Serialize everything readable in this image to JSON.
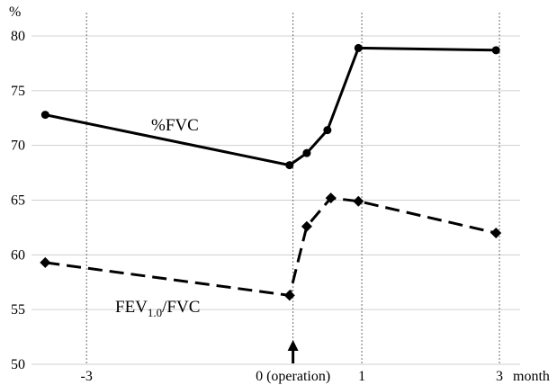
{
  "chart_data": {
    "type": "line",
    "ylabel": "%",
    "xlabel": "month",
    "ylim": [
      50,
      80
    ],
    "yticks": [
      50,
      55,
      60,
      65,
      70,
      75,
      80
    ],
    "xlim": [
      -3.8,
      3.3
    ],
    "xticks": [
      {
        "value": -3,
        "label": "-3"
      },
      {
        "value": 0,
        "label": "0 (operation)"
      },
      {
        "value": 1,
        "label": "1"
      },
      {
        "value": 3,
        "label": "3"
      }
    ],
    "grid": {
      "y": true,
      "x_dotted_at_ticks": true
    },
    "annotation": {
      "type": "arrow-up",
      "x": 0,
      "meaning": "operation"
    },
    "series": [
      {
        "label_main": "%FVC",
        "label_sub": "",
        "label_tail": "",
        "style": "solid",
        "marker": "circle",
        "color": "#000000",
        "x": [
          -3.6,
          -0.05,
          0.2,
          0.5,
          0.95,
          2.95
        ],
        "y": [
          72.8,
          68.2,
          69.3,
          71.4,
          78.9,
          78.7
        ]
      },
      {
        "label_main": "FEV",
        "label_sub": "1.0",
        "label_tail": "/FVC",
        "style": "dashed",
        "marker": "diamond",
        "color": "#000000",
        "x": [
          -3.6,
          -0.05,
          0.2,
          0.55,
          0.95,
          2.95
        ],
        "y": [
          59.3,
          56.3,
          62.6,
          65.2,
          64.9,
          62.0
        ]
      }
    ]
  }
}
